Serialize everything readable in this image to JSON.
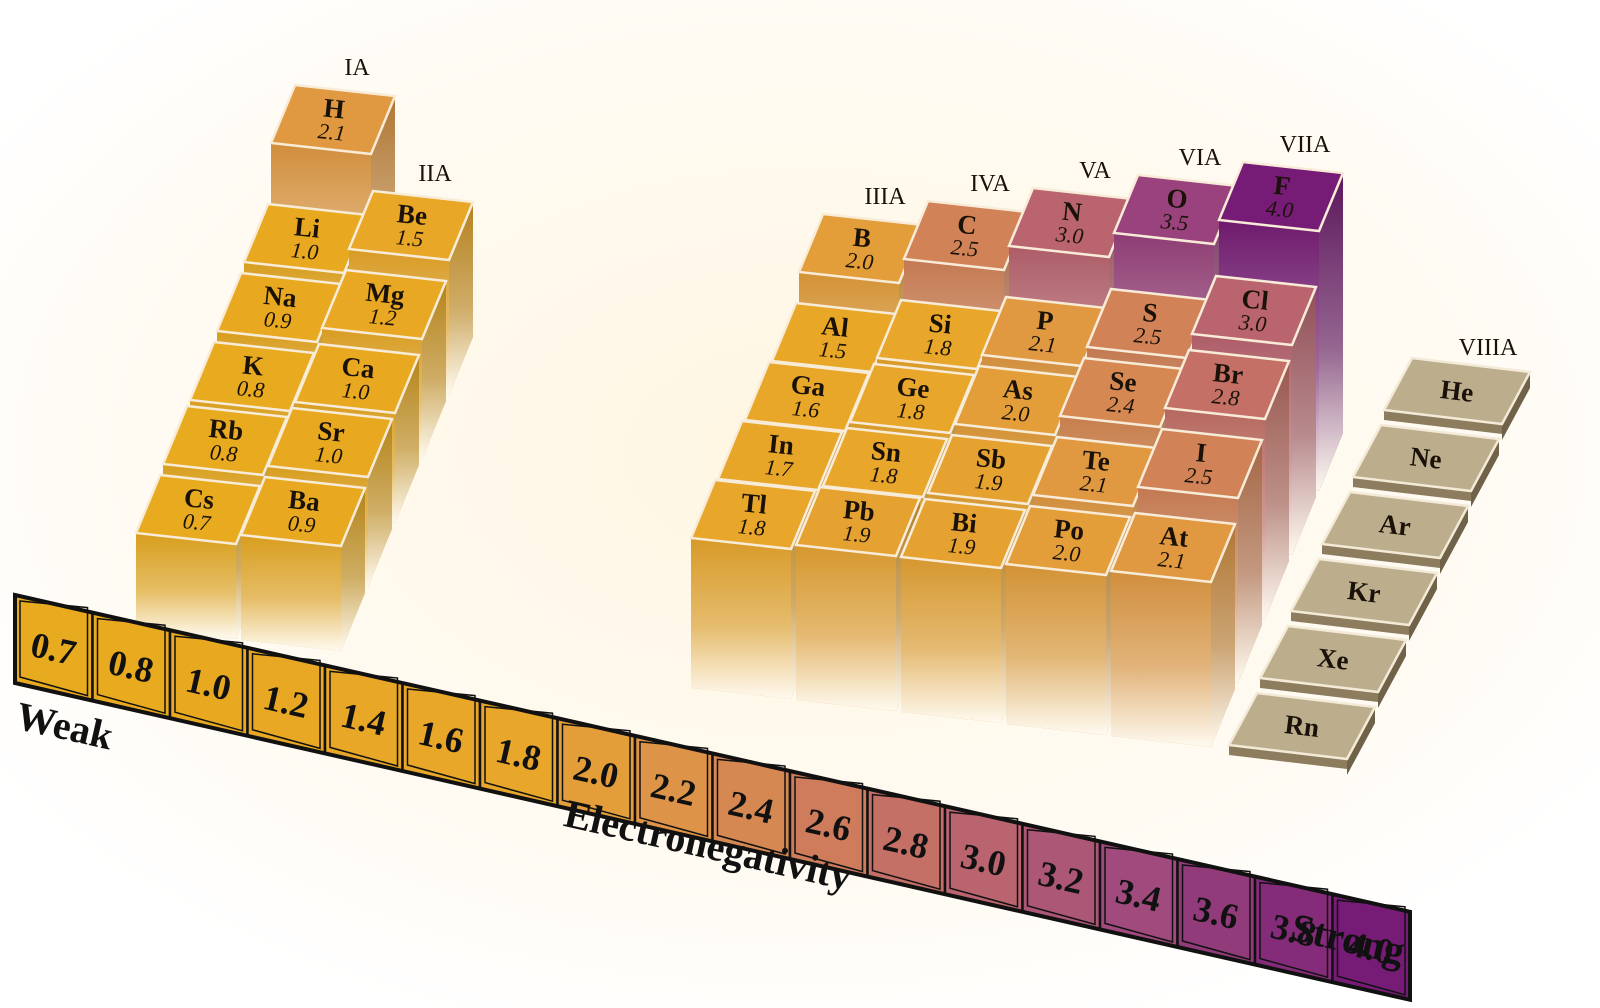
{
  "groups": [
    {
      "label": "IA",
      "elements": [
        {
          "symbol": "H",
          "value": "2.1"
        },
        {
          "symbol": "Li",
          "value": "1.0"
        },
        {
          "symbol": "Na",
          "value": "0.9"
        },
        {
          "symbol": "K",
          "value": "0.8"
        },
        {
          "symbol": "Rb",
          "value": "0.8"
        },
        {
          "symbol": "Cs",
          "value": "0.7"
        }
      ]
    },
    {
      "label": "IIA",
      "elements": [
        {
          "symbol": "Be",
          "value": "1.5"
        },
        {
          "symbol": "Mg",
          "value": "1.2"
        },
        {
          "symbol": "Ca",
          "value": "1.0"
        },
        {
          "symbol": "Sr",
          "value": "1.0"
        },
        {
          "symbol": "Ba",
          "value": "0.9"
        }
      ]
    },
    {
      "label": "IIIA",
      "elements": [
        {
          "symbol": "B",
          "value": "2.0"
        },
        {
          "symbol": "Al",
          "value": "1.5"
        },
        {
          "symbol": "Ga",
          "value": "1.6"
        },
        {
          "symbol": "In",
          "value": "1.7"
        },
        {
          "symbol": "Tl",
          "value": "1.8"
        }
      ]
    },
    {
      "label": "IVA",
      "elements": [
        {
          "symbol": "C",
          "value": "2.5"
        },
        {
          "symbol": "Si",
          "value": "1.8"
        },
        {
          "symbol": "Ge",
          "value": "1.8"
        },
        {
          "symbol": "Sn",
          "value": "1.8"
        },
        {
          "symbol": "Pb",
          "value": "1.9"
        }
      ]
    },
    {
      "label": "VA",
      "elements": [
        {
          "symbol": "N",
          "value": "3.0"
        },
        {
          "symbol": "P",
          "value": "2.1"
        },
        {
          "symbol": "As",
          "value": "2.0"
        },
        {
          "symbol": "Sb",
          "value": "1.9"
        },
        {
          "symbol": "Bi",
          "value": "1.9"
        }
      ]
    },
    {
      "label": "VIA",
      "elements": [
        {
          "symbol": "O",
          "value": "3.5"
        },
        {
          "symbol": "S",
          "value": "2.5"
        },
        {
          "symbol": "Se",
          "value": "2.4"
        },
        {
          "symbol": "Te",
          "value": "2.1"
        },
        {
          "symbol": "Po",
          "value": "2.0"
        }
      ]
    },
    {
      "label": "VIIA",
      "elements": [
        {
          "symbol": "F",
          "value": "4.0"
        },
        {
          "symbol": "Cl",
          "value": "3.0"
        },
        {
          "symbol": "Br",
          "value": "2.8"
        },
        {
          "symbol": "I",
          "value": "2.5"
        },
        {
          "symbol": "At",
          "value": "2.1"
        }
      ]
    }
  ],
  "noble_gases": {
    "label": "VIIIA",
    "elements": [
      "He",
      "Ne",
      "Ar",
      "Kr",
      "Xe",
      "Rn"
    ]
  },
  "scale": {
    "values": [
      "0.7",
      "0.8",
      "1.0",
      "1.2",
      "1.4",
      "1.6",
      "1.8",
      "2.0",
      "2.2",
      "2.4",
      "2.6",
      "2.8",
      "3.0",
      "3.2",
      "3.4",
      "3.6",
      "3.8",
      "4.0"
    ],
    "low_label": "Weak",
    "title": "Electronegativity",
    "high_label": "Strong"
  }
}
